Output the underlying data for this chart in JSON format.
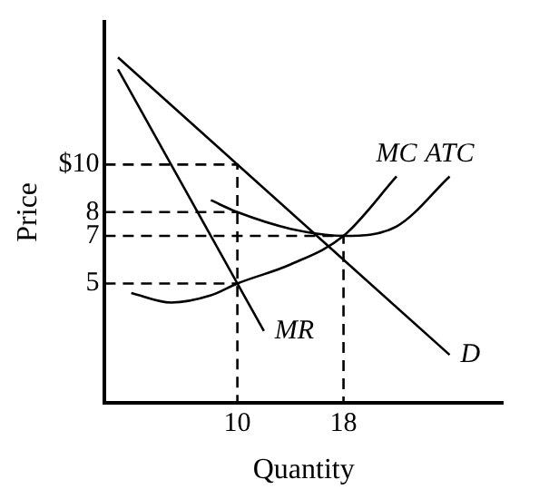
{
  "chart_data": {
    "type": "line",
    "xlabel": "Quantity",
    "ylabel": "Price",
    "xlim": [
      0,
      30
    ],
    "ylim": [
      0,
      16
    ],
    "xticks": [
      10,
      18
    ],
    "yticks": [
      {
        "value": 10,
        "label": "$10"
      },
      8,
      7,
      5
    ],
    "grid": false,
    "legend": false,
    "marker": "none",
    "series": [
      {
        "name": "D",
        "color": "#000000",
        "x": [
          1,
          26
        ],
        "values": [
          14.5,
          2
        ]
      },
      {
        "name": "MR",
        "color": "#000000",
        "x": [
          1,
          12
        ],
        "values": [
          14,
          3
        ]
      },
      {
        "name": "MC",
        "color": "#000000",
        "x": [
          2,
          5,
          8,
          10,
          14,
          18,
          22
        ],
        "values": [
          4.6,
          4.2,
          4.5,
          5,
          5.8,
          7,
          9.5
        ]
      },
      {
        "name": "ATC",
        "color": "#000000",
        "x": [
          8,
          10,
          14,
          18,
          22,
          26
        ],
        "values": [
          8.5,
          8,
          7.3,
          7,
          7.4,
          9.5
        ]
      },
      {
        "color": "#000000",
        "line_style": "dashed",
        "x": [
          0,
          10,
          10
        ],
        "values": [
          10,
          10,
          0
        ]
      },
      {
        "color": "#000000",
        "line_style": "dashed",
        "x": [
          0,
          10
        ],
        "values": [
          8,
          8
        ]
      },
      {
        "color": "#000000",
        "line_style": "dashed",
        "x": [
          0,
          10
        ],
        "values": [
          5,
          5
        ]
      },
      {
        "color": "#000000",
        "line_style": "dashed",
        "x": [
          0,
          18,
          18
        ],
        "values": [
          7,
          7,
          0
        ]
      }
    ]
  }
}
